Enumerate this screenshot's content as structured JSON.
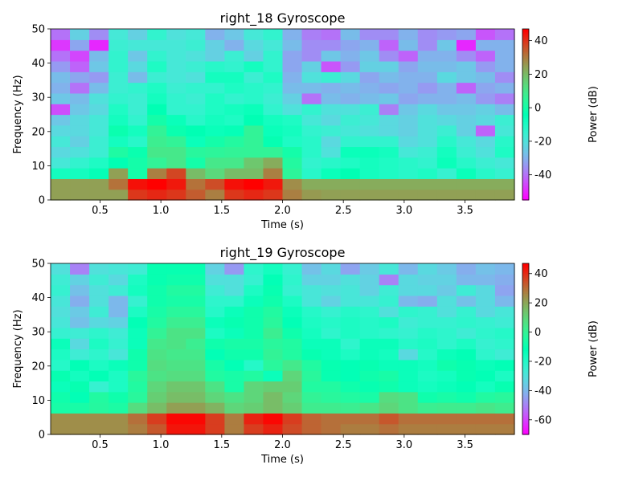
{
  "chart_data": [
    {
      "type": "heatmap",
      "title": "right_18 Gyroscope",
      "xlabel": "Time (s)",
      "ylabel": "Frequency (Hz)",
      "xlim": [
        0.094,
        3.906
      ],
      "ylim": [
        0,
        50
      ],
      "xticks": [
        "0.5",
        "1.0",
        "1.5",
        "2.0",
        "2.5",
        "3.0",
        "3.5"
      ],
      "yticks": [
        "0",
        "10",
        "20",
        "30",
        "40",
        "50"
      ],
      "colorbar": {
        "label": "Power (dB)",
        "vmin": -55,
        "vmax": 47,
        "ticks": [
          "-40",
          "-20",
          "0",
          "20",
          "40"
        ]
      },
      "colormap": "rainbow",
      "time_bins": 24,
      "frequency_bins": [
        0,
        3.125,
        6.25,
        9.375,
        12.5,
        15.625,
        18.75,
        21.875,
        25,
        28.125,
        31.25,
        34.375,
        37.5,
        40.625,
        43.75,
        46.875,
        50
      ],
      "z_rows_low_to_high_freq": [
        [
          25,
          25,
          25,
          25,
          40,
          42,
          40,
          35,
          30,
          40,
          42,
          40,
          30,
          26,
          25,
          25,
          25,
          25,
          25,
          25,
          25,
          25,
          25,
          25
        ],
        [
          25,
          25,
          25,
          32,
          45,
          47,
          44,
          32,
          37,
          45,
          47,
          44,
          28,
          23,
          23,
          23,
          23,
          23,
          23,
          23,
          23,
          23,
          23,
          23
        ],
        [
          -8,
          -8,
          -5,
          25,
          0,
          30,
          38,
          20,
          14,
          20,
          20,
          30,
          5,
          -12,
          -6,
          -4,
          -8,
          -10,
          -12,
          -10,
          -15,
          -6,
          -12,
          -15
        ],
        [
          -18,
          -14,
          -10,
          -4,
          0,
          6,
          10,
          0,
          10,
          10,
          18,
          23,
          3,
          -14,
          -12,
          -10,
          -8,
          -10,
          -12,
          -14,
          -6,
          -12,
          -16,
          -18
        ],
        [
          -22,
          -20,
          -16,
          2,
          -2,
          10,
          10,
          4,
          5,
          6,
          6,
          6,
          0,
          -12,
          -20,
          -6,
          -6,
          -8,
          -18,
          -16,
          -8,
          -16,
          -20,
          -10
        ],
        [
          -18,
          -24,
          -16,
          -8,
          -12,
          8,
          6,
          -6,
          0,
          3,
          6,
          -3,
          -10,
          -12,
          -22,
          -14,
          -14,
          -14,
          -22,
          -20,
          -12,
          -18,
          -22,
          -12
        ],
        [
          -22,
          -22,
          -18,
          -2,
          -8,
          6,
          -2,
          -4,
          -6,
          -5,
          6,
          -6,
          -8,
          -14,
          -16,
          -18,
          -20,
          -22,
          -24,
          -20,
          -16,
          -24,
          -42,
          -18
        ],
        [
          -26,
          -22,
          -18,
          -8,
          -14,
          0,
          -6,
          -12,
          -8,
          -10,
          -4,
          -8,
          -10,
          -18,
          -22,
          -16,
          -18,
          -22,
          -24,
          -20,
          -22,
          -24,
          -22,
          -16
        ],
        [
          -45,
          -26,
          -22,
          -10,
          -16,
          -4,
          -14,
          -14,
          -10,
          -8,
          -6,
          -14,
          -20,
          -14,
          -20,
          -20,
          -16,
          -38,
          -26,
          -22,
          -26,
          -26,
          -24,
          -28
        ],
        [
          -26,
          -28,
          -20,
          -14,
          -16,
          -8,
          -14,
          -16,
          -10,
          -14,
          -12,
          -16,
          -24,
          -40,
          -28,
          -30,
          -28,
          -26,
          -32,
          -30,
          -30,
          -28,
          -34,
          -38
        ],
        [
          -30,
          -40,
          -28,
          -16,
          -14,
          -10,
          -16,
          -14,
          -14,
          -10,
          -12,
          -14,
          -28,
          -28,
          -30,
          -28,
          -30,
          -32,
          -30,
          -34,
          -30,
          -42,
          -32,
          -30
        ],
        [
          -28,
          -32,
          -34,
          -16,
          -28,
          -16,
          -18,
          -20,
          -8,
          -8,
          -16,
          -10,
          -30,
          -20,
          -16,
          -22,
          -32,
          -28,
          -30,
          -30,
          -22,
          -26,
          -28,
          -36
        ],
        [
          -34,
          -42,
          -26,
          -14,
          -22,
          -10,
          -18,
          -16,
          -12,
          -14,
          -8,
          -14,
          -32,
          -24,
          -44,
          -34,
          -24,
          -24,
          -32,
          -28,
          -28,
          -26,
          -34,
          -30
        ],
        [
          -40,
          -46,
          -28,
          -14,
          -26,
          -14,
          -18,
          -20,
          -24,
          -16,
          -24,
          -14,
          -32,
          -36,
          -26,
          -30,
          -26,
          -36,
          -42,
          -30,
          -30,
          -36,
          -42,
          -30
        ],
        [
          -48,
          -32,
          -50,
          -16,
          -18,
          -18,
          -18,
          -16,
          -24,
          -30,
          -22,
          -18,
          -28,
          -36,
          -36,
          -32,
          -30,
          -42,
          -28,
          -36,
          -26,
          -50,
          -30,
          -30
        ],
        [
          -40,
          -24,
          -36,
          -18,
          -24,
          -14,
          -20,
          -18,
          -30,
          -26,
          -18,
          -14,
          -30,
          -38,
          -40,
          -28,
          -36,
          -36,
          -30,
          -36,
          -34,
          -32,
          -44,
          -40
        ],
        [
          -44,
          -26,
          -36,
          -34,
          -50,
          -32,
          -36,
          -44,
          -38,
          -34,
          -36,
          -28,
          -42,
          -36,
          -52,
          -42,
          -46,
          -38,
          -36,
          -34,
          -48,
          -22,
          -50,
          -52
        ]
      ]
    },
    {
      "type": "heatmap",
      "title": "right_19 Gyroscope",
      "xlabel": "Time (s)",
      "ylabel": "Frequency (Hz)",
      "xlim": [
        0.094,
        3.906
      ],
      "ylim": [
        0,
        50
      ],
      "xticks": [
        "0.5",
        "1.0",
        "1.5",
        "2.0",
        "2.5",
        "3.0",
        "3.5"
      ],
      "yticks": [
        "0",
        "10",
        "20",
        "30",
        "40",
        "50"
      ],
      "colorbar": {
        "label": "Power (dB)",
        "vmin": -70,
        "vmax": 47,
        "ticks": [
          "-60",
          "-40",
          "-20",
          "0",
          "20",
          "40"
        ]
      },
      "colormap": "rainbow",
      "time_bins": 24,
      "frequency_bins": [
        0,
        3.125,
        6.25,
        9.375,
        12.5,
        15.625,
        18.75,
        21.875,
        25,
        28.125,
        31.25,
        34.375,
        37.5,
        40.625,
        43.75,
        46.875,
        50
      ],
      "z_rows_low_to_high_freq": [
        [
          25,
          25,
          25,
          25,
          28,
          34,
          44,
          44,
          38,
          28,
          38,
          42,
          36,
          32,
          30,
          28,
          28,
          30,
          28,
          28,
          28,
          28,
          28,
          28
        ],
        [
          25,
          25,
          25,
          25,
          30,
          38,
          46,
          46,
          38,
          28,
          42,
          46,
          38,
          32,
          30,
          30,
          30,
          34,
          30,
          30,
          30,
          30,
          30,
          30
        ],
        [
          -6,
          -6,
          -3,
          -5,
          8,
          16,
          22,
          22,
          18,
          10,
          12,
          16,
          12,
          3,
          3,
          2,
          5,
          10,
          6,
          2,
          3,
          3,
          5,
          3
        ],
        [
          -8,
          -12,
          -4,
          -8,
          -2,
          12,
          16,
          16,
          10,
          6,
          10,
          16,
          10,
          0,
          -2,
          -4,
          -6,
          8,
          6,
          -8,
          -6,
          -8,
          -4,
          -2
        ],
        [
          -14,
          -10,
          -24,
          -18,
          -4,
          10,
          14,
          14,
          6,
          -6,
          10,
          12,
          12,
          -4,
          -4,
          -8,
          -10,
          -8,
          -14,
          -16,
          -14,
          -12,
          -16,
          -10
        ],
        [
          -10,
          -16,
          -12,
          -18,
          -2,
          6,
          8,
          8,
          -4,
          -6,
          -4,
          -14,
          10,
          -2,
          -10,
          -12,
          -8,
          -6,
          -14,
          -18,
          -16,
          -10,
          -12,
          -18
        ],
        [
          -20,
          -12,
          -18,
          -14,
          -8,
          8,
          6,
          6,
          -6,
          -12,
          -20,
          -2,
          4,
          -4,
          -10,
          -12,
          -10,
          -14,
          -14,
          -16,
          -8,
          -10,
          -14,
          -12
        ],
        [
          -18,
          -26,
          -22,
          -28,
          -8,
          6,
          4,
          4,
          -12,
          -8,
          -8,
          0,
          -4,
          -10,
          -14,
          -18,
          -14,
          -16,
          -32,
          -20,
          -14,
          -12,
          -22,
          -26
        ],
        [
          -14,
          -32,
          -18,
          -24,
          -14,
          4,
          6,
          2,
          -8,
          -6,
          -6,
          -2,
          -4,
          -14,
          -14,
          -22,
          -14,
          -14,
          -20,
          -18,
          -22,
          -18,
          -24,
          -22
        ],
        [
          -24,
          -26,
          -22,
          -26,
          -14,
          0,
          6,
          6,
          -18,
          -14,
          -8,
          2,
          -8,
          -16,
          -22,
          -18,
          -20,
          -22,
          -24,
          -20,
          -22,
          -26,
          -22,
          -20
        ],
        [
          -28,
          -38,
          -32,
          -34,
          -12,
          -4,
          2,
          2,
          -14,
          -10,
          -8,
          -2,
          -12,
          -18,
          -20,
          -18,
          -20,
          -18,
          -26,
          -24,
          -24,
          -22,
          -24,
          -26
        ],
        [
          -30,
          -36,
          -26,
          -40,
          -18,
          -6,
          -2,
          -2,
          -20,
          -14,
          -8,
          -4,
          -14,
          -20,
          -24,
          -20,
          -22,
          -30,
          -22,
          -24,
          -30,
          -24,
          -32,
          -28
        ],
        [
          -28,
          -42,
          -30,
          -40,
          -24,
          -8,
          -6,
          -6,
          -22,
          -22,
          -14,
          -8,
          -18,
          -28,
          -34,
          -28,
          -28,
          -24,
          -40,
          -42,
          -30,
          -38,
          -32,
          -40
        ],
        [
          -24,
          -38,
          -30,
          -26,
          -16,
          -8,
          -4,
          -4,
          -26,
          -30,
          -18,
          -10,
          -24,
          -28,
          -30,
          -28,
          -34,
          -26,
          -32,
          -32,
          -36,
          -26,
          -32,
          -44
        ],
        [
          -26,
          -34,
          -26,
          -32,
          -18,
          -10,
          -8,
          -8,
          -30,
          -30,
          -24,
          -12,
          -22,
          -34,
          -34,
          -30,
          -34,
          -50,
          -32,
          -34,
          -34,
          -40,
          -40,
          -42
        ],
        [
          -30,
          -50,
          -30,
          -28,
          -26,
          -10,
          -10,
          -10,
          -34,
          -46,
          -22,
          -16,
          -24,
          -38,
          -32,
          -44,
          -36,
          -28,
          -40,
          -32,
          -36,
          -42,
          -38,
          -40
        ],
        [
          -68,
          -40,
          -28,
          -34,
          -22,
          -10,
          -12,
          -12,
          -44,
          -30,
          -24,
          -16,
          -22,
          -26,
          -36,
          -38,
          -34,
          -40,
          -58,
          -36,
          -44,
          -54,
          -36,
          -56
        ]
      ]
    }
  ]
}
